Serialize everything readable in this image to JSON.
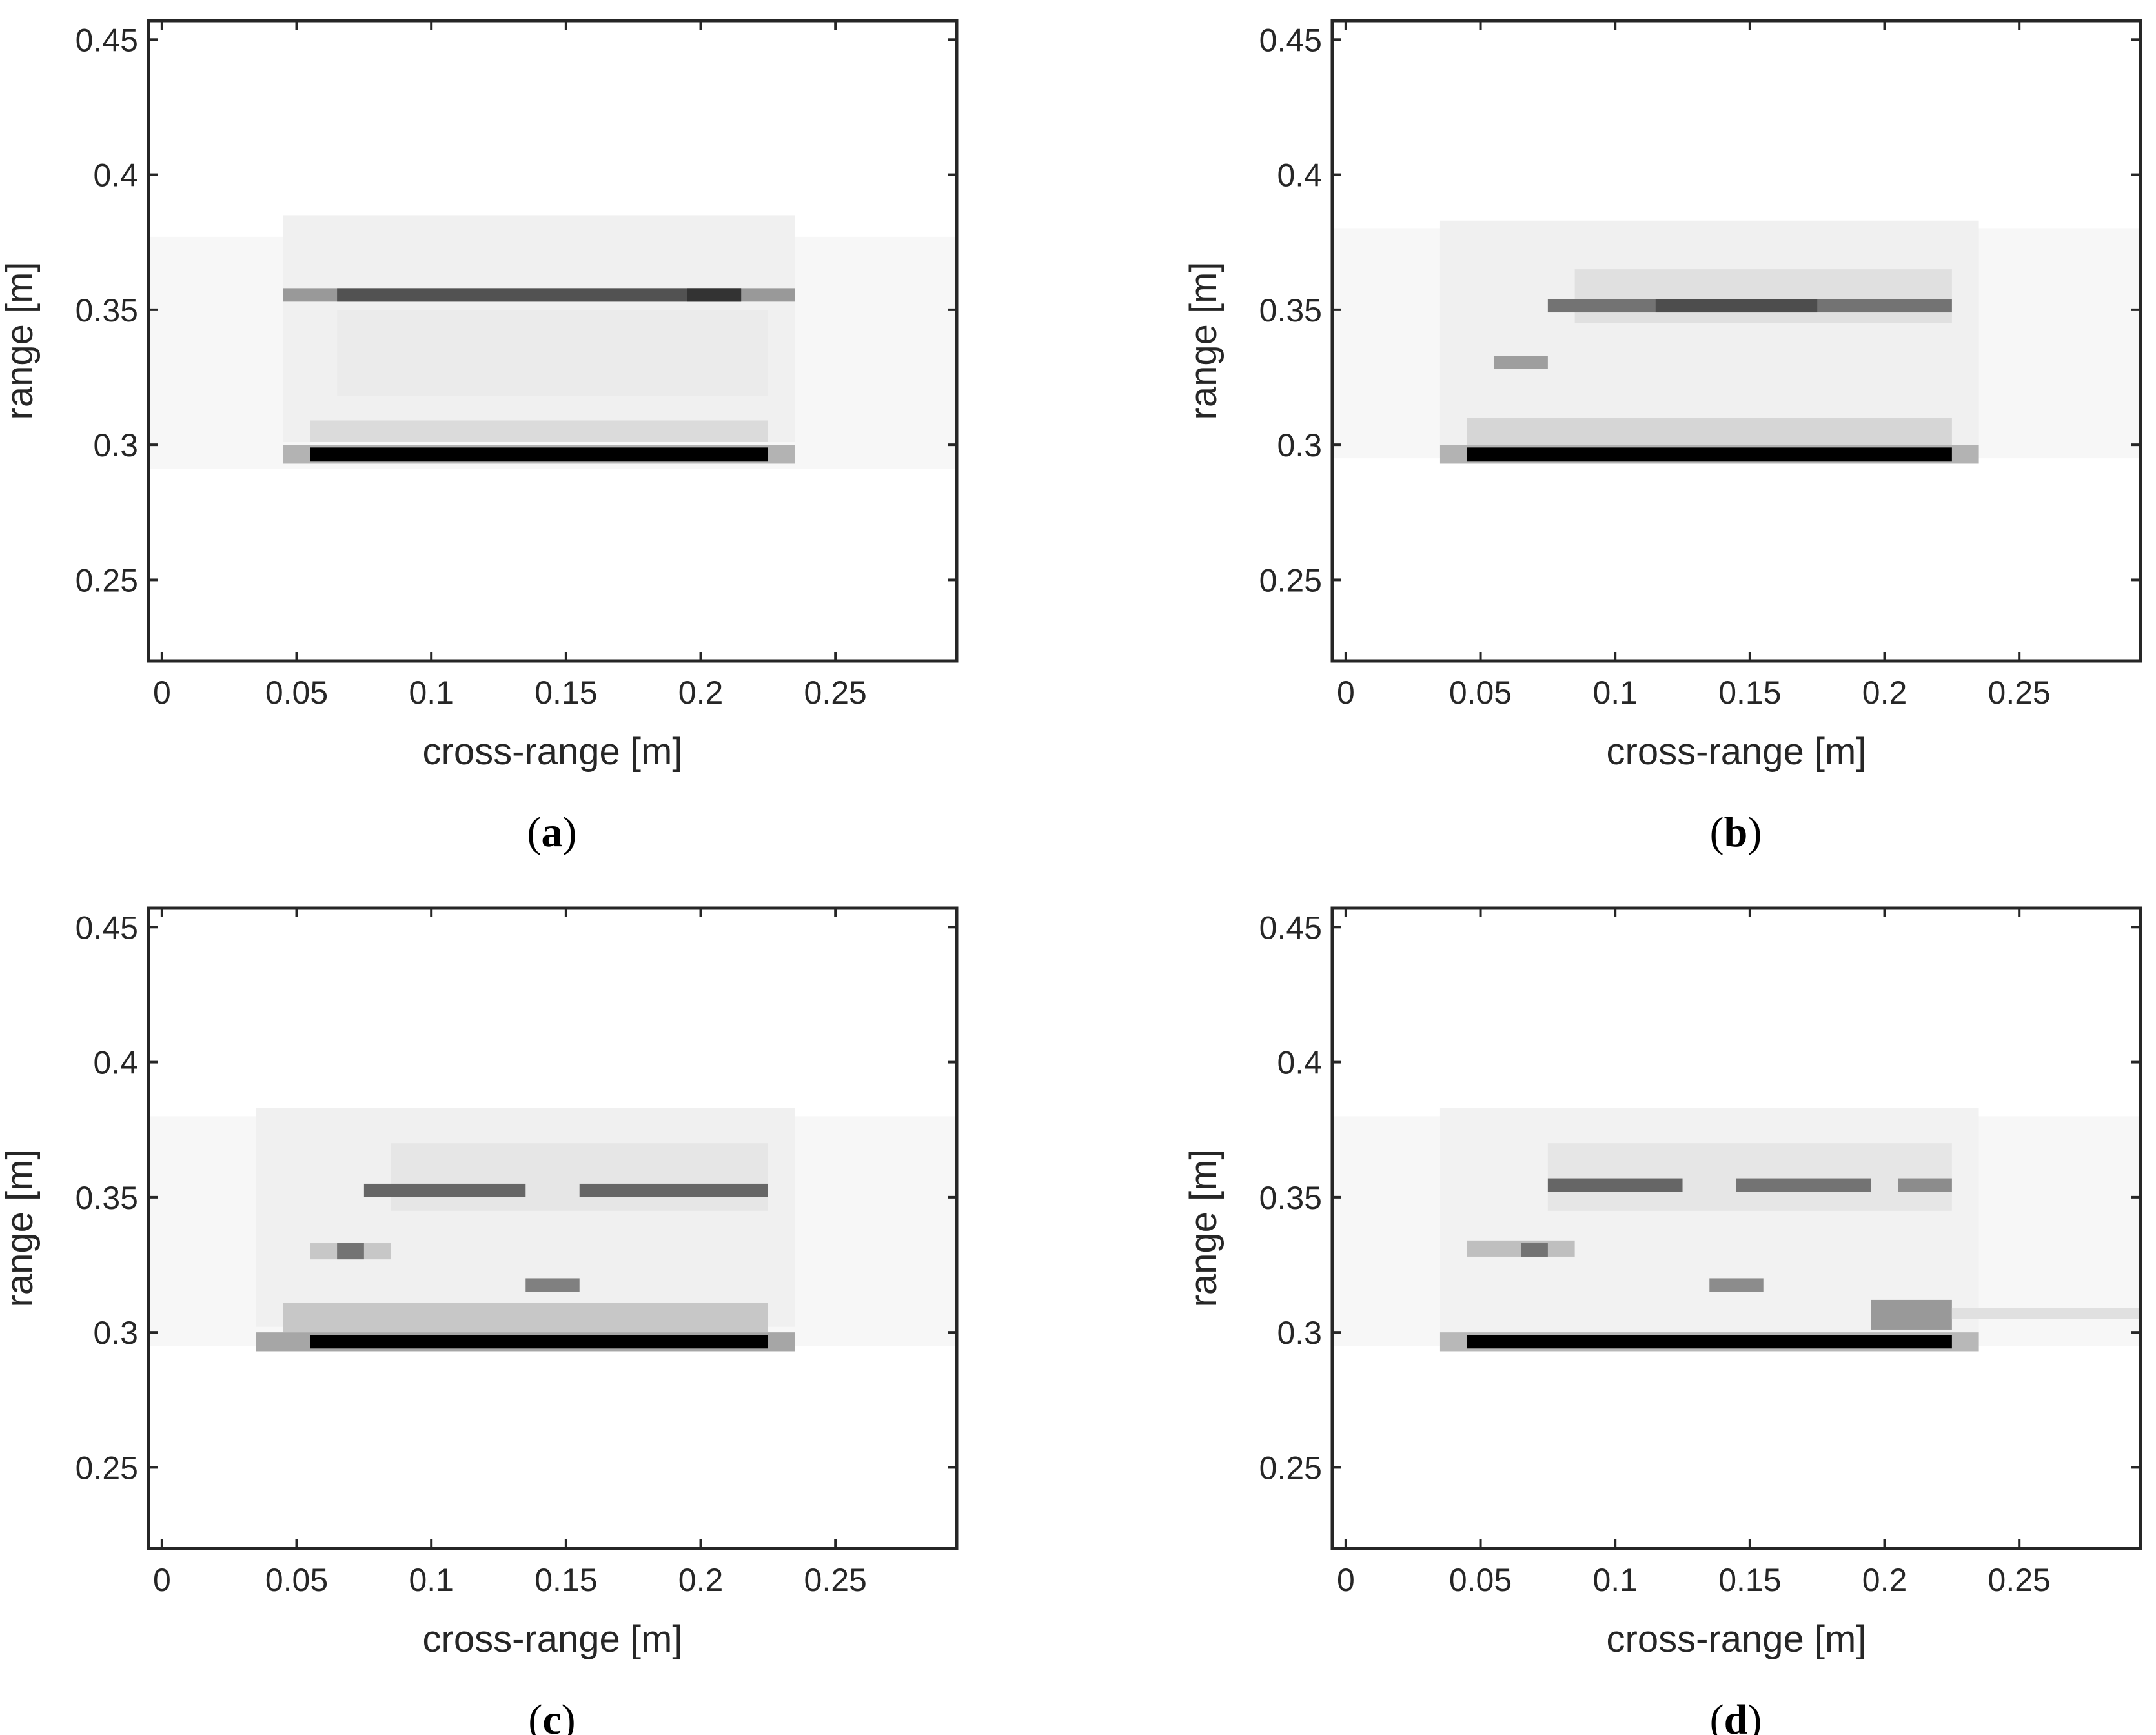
{
  "figure": {
    "panels": [
      {
        "label_open": "(",
        "label_letter": "a",
        "label_close": ")"
      },
      {
        "label_open": "(",
        "label_letter": "b",
        "label_close": ")"
      },
      {
        "label_open": "(",
        "label_letter": "c",
        "label_close": ")"
      },
      {
        "label_open": "(",
        "label_letter": "d",
        "label_close": ")"
      }
    ]
  },
  "chart_data": [
    {
      "type": "heatmap",
      "colormap": "gray (white = low, black = high)",
      "xlabel": "cross-range [m]",
      "ylabel": "range [m]",
      "xlim": [
        -0.005,
        0.295
      ],
      "ylim": [
        0.22,
        0.457
      ],
      "xticks": [
        "0",
        "0.05",
        "0.1",
        "0.15",
        "0.2",
        "0.25"
      ],
      "xtick_values": [
        0,
        0.05,
        0.1,
        0.15,
        0.2,
        0.25
      ],
      "yticks": [
        "0.25",
        "0.3",
        "0.35",
        "0.4",
        "0.45"
      ],
      "ytick_values": [
        0.25,
        0.3,
        0.35,
        0.4,
        0.45
      ],
      "grid": false,
      "cells": [
        {
          "x0": -0.005,
          "x1": 0.295,
          "y0": 0.291,
          "y1": 0.377,
          "v": 0.03
        },
        {
          "x0": 0.045,
          "x1": 0.235,
          "y0": 0.301,
          "y1": 0.385,
          "v": 0.06
        },
        {
          "x0": 0.055,
          "x1": 0.225,
          "y0": 0.301,
          "y1": 0.309,
          "v": 0.14
        },
        {
          "x0": 0.065,
          "x1": 0.225,
          "y0": 0.318,
          "y1": 0.35,
          "v": 0.08
        },
        {
          "x0": 0.045,
          "x1": 0.235,
          "y0": 0.293,
          "y1": 0.3,
          "v": 0.3
        },
        {
          "x0": 0.055,
          "x1": 0.225,
          "y0": 0.294,
          "y1": 0.299,
          "v": 1.0
        },
        {
          "x0": 0.045,
          "x1": 0.235,
          "y0": 0.353,
          "y1": 0.358,
          "v": 0.4
        },
        {
          "x0": 0.065,
          "x1": 0.215,
          "y0": 0.353,
          "y1": 0.358,
          "v": 0.68
        },
        {
          "x0": 0.195,
          "x1": 0.215,
          "y0": 0.353,
          "y1": 0.358,
          "v": 0.8
        }
      ]
    },
    {
      "type": "heatmap",
      "colormap": "gray (white = low, black = high)",
      "xlabel": "cross-range [m]",
      "ylabel": "range [m]",
      "xlim": [
        -0.005,
        0.295
      ],
      "ylim": [
        0.22,
        0.457
      ],
      "xticks": [
        "0",
        "0.05",
        "0.1",
        "0.15",
        "0.2",
        "0.25"
      ],
      "xtick_values": [
        0,
        0.05,
        0.1,
        0.15,
        0.2,
        0.25
      ],
      "yticks": [
        "0.25",
        "0.3",
        "0.35",
        "0.4",
        "0.45"
      ],
      "ytick_values": [
        0.25,
        0.3,
        0.35,
        0.4,
        0.45
      ],
      "grid": false,
      "cells": [
        {
          "x0": -0.005,
          "x1": 0.295,
          "y0": 0.295,
          "y1": 0.38,
          "v": 0.03
        },
        {
          "x0": 0.035,
          "x1": 0.235,
          "y0": 0.3,
          "y1": 0.383,
          "v": 0.06
        },
        {
          "x0": 0.045,
          "x1": 0.225,
          "y0": 0.3,
          "y1": 0.31,
          "v": 0.16
        },
        {
          "x0": 0.085,
          "x1": 0.225,
          "y0": 0.345,
          "y1": 0.365,
          "v": 0.12
        },
        {
          "x0": 0.055,
          "x1": 0.075,
          "y0": 0.328,
          "y1": 0.333,
          "v": 0.38
        },
        {
          "x0": 0.035,
          "x1": 0.235,
          "y0": 0.293,
          "y1": 0.3,
          "v": 0.3
        },
        {
          "x0": 0.045,
          "x1": 0.225,
          "y0": 0.294,
          "y1": 0.299,
          "v": 1.0
        },
        {
          "x0": 0.075,
          "x1": 0.225,
          "y0": 0.349,
          "y1": 0.354,
          "v": 0.55
        },
        {
          "x0": 0.115,
          "x1": 0.175,
          "y0": 0.349,
          "y1": 0.354,
          "v": 0.7
        }
      ]
    },
    {
      "type": "heatmap",
      "colormap": "gray (white = low, black = high)",
      "xlabel": "cross-range [m]",
      "ylabel": "range [m]",
      "xlim": [
        -0.005,
        0.295
      ],
      "ylim": [
        0.22,
        0.457
      ],
      "xticks": [
        "0",
        "0.05",
        "0.1",
        "0.15",
        "0.2",
        "0.25"
      ],
      "xtick_values": [
        0,
        0.05,
        0.1,
        0.15,
        0.2,
        0.25
      ],
      "yticks": [
        "0.25",
        "0.3",
        "0.35",
        "0.4",
        "0.45"
      ],
      "ytick_values": [
        0.25,
        0.3,
        0.35,
        0.4,
        0.45
      ],
      "grid": false,
      "cells": [
        {
          "x0": -0.005,
          "x1": 0.295,
          "y0": 0.295,
          "y1": 0.38,
          "v": 0.03
        },
        {
          "x0": 0.035,
          "x1": 0.235,
          "y0": 0.302,
          "y1": 0.383,
          "v": 0.06
        },
        {
          "x0": 0.045,
          "x1": 0.225,
          "y0": 0.3,
          "y1": 0.311,
          "v": 0.22
        },
        {
          "x0": 0.085,
          "x1": 0.225,
          "y0": 0.345,
          "y1": 0.37,
          "v": 0.1
        },
        {
          "x0": 0.055,
          "x1": 0.085,
          "y0": 0.327,
          "y1": 0.333,
          "v": 0.22
        },
        {
          "x0": 0.065,
          "x1": 0.075,
          "y0": 0.327,
          "y1": 0.333,
          "v": 0.55
        },
        {
          "x0": 0.135,
          "x1": 0.155,
          "y0": 0.315,
          "y1": 0.32,
          "v": 0.5
        },
        {
          "x0": 0.035,
          "x1": 0.235,
          "y0": 0.293,
          "y1": 0.3,
          "v": 0.35
        },
        {
          "x0": 0.055,
          "x1": 0.225,
          "y0": 0.294,
          "y1": 0.299,
          "v": 1.0
        },
        {
          "x0": 0.075,
          "x1": 0.135,
          "y0": 0.35,
          "y1": 0.355,
          "v": 0.6
        },
        {
          "x0": 0.155,
          "x1": 0.225,
          "y0": 0.35,
          "y1": 0.355,
          "v": 0.6
        }
      ]
    },
    {
      "type": "heatmap",
      "colormap": "gray (white = low, black = high)",
      "xlabel": "cross-range [m]",
      "ylabel": "range [m]",
      "xlim": [
        -0.005,
        0.295
      ],
      "ylim": [
        0.22,
        0.457
      ],
      "xticks": [
        "0",
        "0.05",
        "0.1",
        "0.15",
        "0.2",
        "0.25"
      ],
      "xtick_values": [
        0,
        0.05,
        0.1,
        0.15,
        0.2,
        0.25
      ],
      "yticks": [
        "0.25",
        "0.3",
        "0.35",
        "0.4",
        "0.45"
      ],
      "ytick_values": [
        0.25,
        0.3,
        0.35,
        0.4,
        0.45
      ],
      "grid": false,
      "cells": [
        {
          "x0": -0.005,
          "x1": 0.295,
          "y0": 0.295,
          "y1": 0.38,
          "v": 0.03
        },
        {
          "x0": 0.035,
          "x1": 0.235,
          "y0": 0.3,
          "y1": 0.383,
          "v": 0.05
        },
        {
          "x0": 0.075,
          "x1": 0.225,
          "y0": 0.345,
          "y1": 0.37,
          "v": 0.1
        },
        {
          "x0": 0.045,
          "x1": 0.085,
          "y0": 0.328,
          "y1": 0.334,
          "v": 0.25
        },
        {
          "x0": 0.065,
          "x1": 0.075,
          "y0": 0.328,
          "y1": 0.333,
          "v": 0.55
        },
        {
          "x0": 0.135,
          "x1": 0.155,
          "y0": 0.315,
          "y1": 0.32,
          "v": 0.45
        },
        {
          "x0": 0.195,
          "x1": 0.225,
          "y0": 0.301,
          "y1": 0.312,
          "v": 0.4
        },
        {
          "x0": 0.225,
          "x1": 0.295,
          "y0": 0.305,
          "y1": 0.309,
          "v": 0.12
        },
        {
          "x0": 0.035,
          "x1": 0.235,
          "y0": 0.293,
          "y1": 0.3,
          "v": 0.28
        },
        {
          "x0": 0.045,
          "x1": 0.225,
          "y0": 0.294,
          "y1": 0.299,
          "v": 1.0
        },
        {
          "x0": 0.075,
          "x1": 0.125,
          "y0": 0.352,
          "y1": 0.357,
          "v": 0.6
        },
        {
          "x0": 0.145,
          "x1": 0.195,
          "y0": 0.352,
          "y1": 0.357,
          "v": 0.55
        },
        {
          "x0": 0.205,
          "x1": 0.225,
          "y0": 0.352,
          "y1": 0.357,
          "v": 0.45
        }
      ]
    }
  ]
}
